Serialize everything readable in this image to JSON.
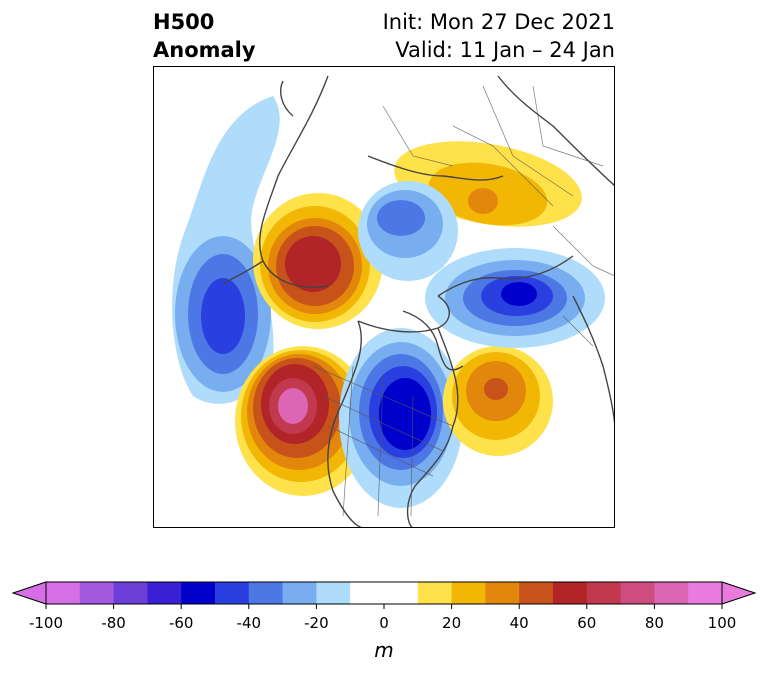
{
  "title": {
    "left_line1": "H500",
    "left_line2": "Anomaly",
    "right_line1": "Init: Mon 27 Dec 2021",
    "right_line2": "Valid: 11 Jan – 24 Jan"
  },
  "colorbar": {
    "unit": "m",
    "tick_labels": [
      "-100",
      "-80",
      "-60",
      "-40",
      "-20",
      "0",
      "20",
      "40",
      "60",
      "80",
      "100"
    ],
    "bins": [
      {
        "from": -100,
        "to": -90,
        "color": "#d66fe6"
      },
      {
        "from": -90,
        "to": -80,
        "color": "#a558e0"
      },
      {
        "from": -80,
        "to": -70,
        "color": "#6c3fd8"
      },
      {
        "from": -70,
        "to": -60,
        "color": "#3a1fd4"
      },
      {
        "from": -60,
        "to": -50,
        "color": "#0000cc"
      },
      {
        "from": -50,
        "to": -40,
        "color": "#2a3fdf"
      },
      {
        "from": -40,
        "to": -30,
        "color": "#4e77e6"
      },
      {
        "from": -30,
        "to": -20,
        "color": "#78aef0"
      },
      {
        "from": -20,
        "to": -10,
        "color": "#afdcfa"
      },
      {
        "from": -10,
        "to": 10,
        "color": "#ffffff"
      },
      {
        "from": 10,
        "to": 20,
        "color": "#ffe14a"
      },
      {
        "from": 20,
        "to": 30,
        "color": "#f2b705"
      },
      {
        "from": 30,
        "to": 40,
        "color": "#e2860c"
      },
      {
        "from": 40,
        "to": 50,
        "color": "#c8531a"
      },
      {
        "from": 50,
        "to": 60,
        "color": "#b12427"
      },
      {
        "from": 60,
        "to": 70,
        "color": "#c2384f"
      },
      {
        "from": 70,
        "to": 80,
        "color": "#cf4c80"
      },
      {
        "from": 80,
        "to": 90,
        "color": "#dc66b3"
      },
      {
        "from": 90,
        "to": 100,
        "color": "#e87bdd"
      }
    ],
    "extend_low_color": "#d66fe6",
    "extend_high_color": "#e87bdd"
  },
  "map": {
    "anomaly_centers": [
      {
        "region": "north-pacific",
        "sign": "negative",
        "peak": -40
      },
      {
        "region": "alaska",
        "sign": "positive",
        "peak": 60
      },
      {
        "region": "western-us",
        "sign": "positive",
        "peak": 80
      },
      {
        "region": "eastern-canada-us",
        "sign": "negative",
        "peak": -60
      },
      {
        "region": "north-atlantic",
        "sign": "positive",
        "peak": 40
      },
      {
        "region": "siberia",
        "sign": "positive",
        "peak": 30
      },
      {
        "region": "arctic",
        "sign": "negative",
        "peak": -40
      },
      {
        "region": "north-europe",
        "sign": "negative",
        "peak": -60
      }
    ]
  }
}
